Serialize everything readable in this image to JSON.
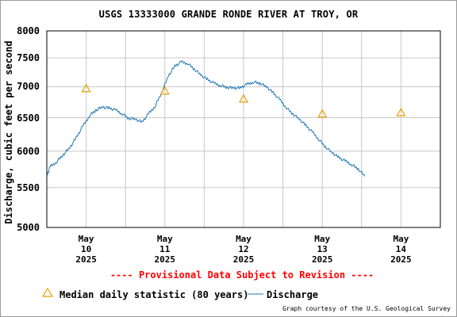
{
  "chart_data": {
    "type": "line",
    "title": "USGS 13333000 GRANDE RONDE RIVER AT TROY, OR",
    "ylabel": "Discharge, cubic feet per second",
    "yscale": "log",
    "ylim": [
      5000,
      8000
    ],
    "yticks": [
      5000,
      5500,
      6000,
      6500,
      7000,
      7500,
      8000
    ],
    "xlim": [
      "2025-05-09 12:00",
      "2025-05-14 12:00"
    ],
    "xticks": [
      {
        "month": "May",
        "day": "10",
        "year": "2025"
      },
      {
        "month": "May",
        "day": "11",
        "year": "2025"
      },
      {
        "month": "May",
        "day": "12",
        "year": "2025"
      },
      {
        "month": "May",
        "day": "13",
        "year": "2025"
      },
      {
        "month": "May",
        "day": "14",
        "year": "2025"
      }
    ],
    "grid": true,
    "series": [
      {
        "name": "Discharge",
        "color": "#1f77b4",
        "x": [
          "2025-05-09 12:00",
          "2025-05-09 13:00",
          "2025-05-09 15:00",
          "2025-05-09 17:00",
          "2025-05-09 19:00",
          "2025-05-09 21:00",
          "2025-05-09 23:00",
          "2025-05-10 01:00",
          "2025-05-10 03:00",
          "2025-05-10 05:00",
          "2025-05-10 07:00",
          "2025-05-10 09:00",
          "2025-05-10 11:00",
          "2025-05-10 13:00",
          "2025-05-10 15:00",
          "2025-05-10 17:00",
          "2025-05-10 19:00",
          "2025-05-10 21:00",
          "2025-05-10 23:00",
          "2025-05-11 01:00",
          "2025-05-11 03:00",
          "2025-05-11 05:00",
          "2025-05-11 07:00",
          "2025-05-11 09:00",
          "2025-05-11 11:00",
          "2025-05-11 13:00",
          "2025-05-11 15:00",
          "2025-05-11 17:00",
          "2025-05-11 19:00",
          "2025-05-11 21:00",
          "2025-05-11 23:00",
          "2025-05-12 01:00",
          "2025-05-12 03:00",
          "2025-05-12 05:00",
          "2025-05-12 07:00",
          "2025-05-12 09:00",
          "2025-05-12 11:00",
          "2025-05-12 13:00",
          "2025-05-12 15:00",
          "2025-05-12 17:00",
          "2025-05-12 19:00",
          "2025-05-12 21:00",
          "2025-05-12 23:00",
          "2025-05-13 01:00",
          "2025-05-13 03:00",
          "2025-05-13 05:00",
          "2025-05-13 07:00",
          "2025-05-13 09:00",
          "2025-05-13 11:00",
          "2025-05-13 13:00"
        ],
        "values": [
          5660,
          5780,
          5850,
          5950,
          6050,
          6200,
          6370,
          6530,
          6620,
          6670,
          6650,
          6620,
          6560,
          6490,
          6480,
          6430,
          6560,
          6680,
          6900,
          7180,
          7350,
          7430,
          7400,
          7300,
          7200,
          7120,
          7060,
          7020,
          6990,
          6980,
          6980,
          7040,
          7080,
          7060,
          7000,
          6900,
          6790,
          6660,
          6560,
          6480,
          6380,
          6280,
          6170,
          6060,
          5980,
          5910,
          5860,
          5810,
          5750,
          5650
        ]
      },
      {
        "name": "Median daily statistic (80 years)",
        "marker": "triangle",
        "color": "#e6a000",
        "x": [
          "2025-05-10 00:00",
          "2025-05-11 00:00",
          "2025-05-12 00:00",
          "2025-05-13 00:00",
          "2025-05-14 00:00"
        ],
        "values": [
          6970,
          6930,
          6800,
          6560,
          6580
        ]
      }
    ]
  },
  "provisional_note": "---- Provisional Data Subject to Revision ----",
  "legend": {
    "median_label": "Median daily statistic (80 years)",
    "discharge_label": "Discharge"
  },
  "courtesy": "Graph courtesy of the U.S. Geological Survey"
}
